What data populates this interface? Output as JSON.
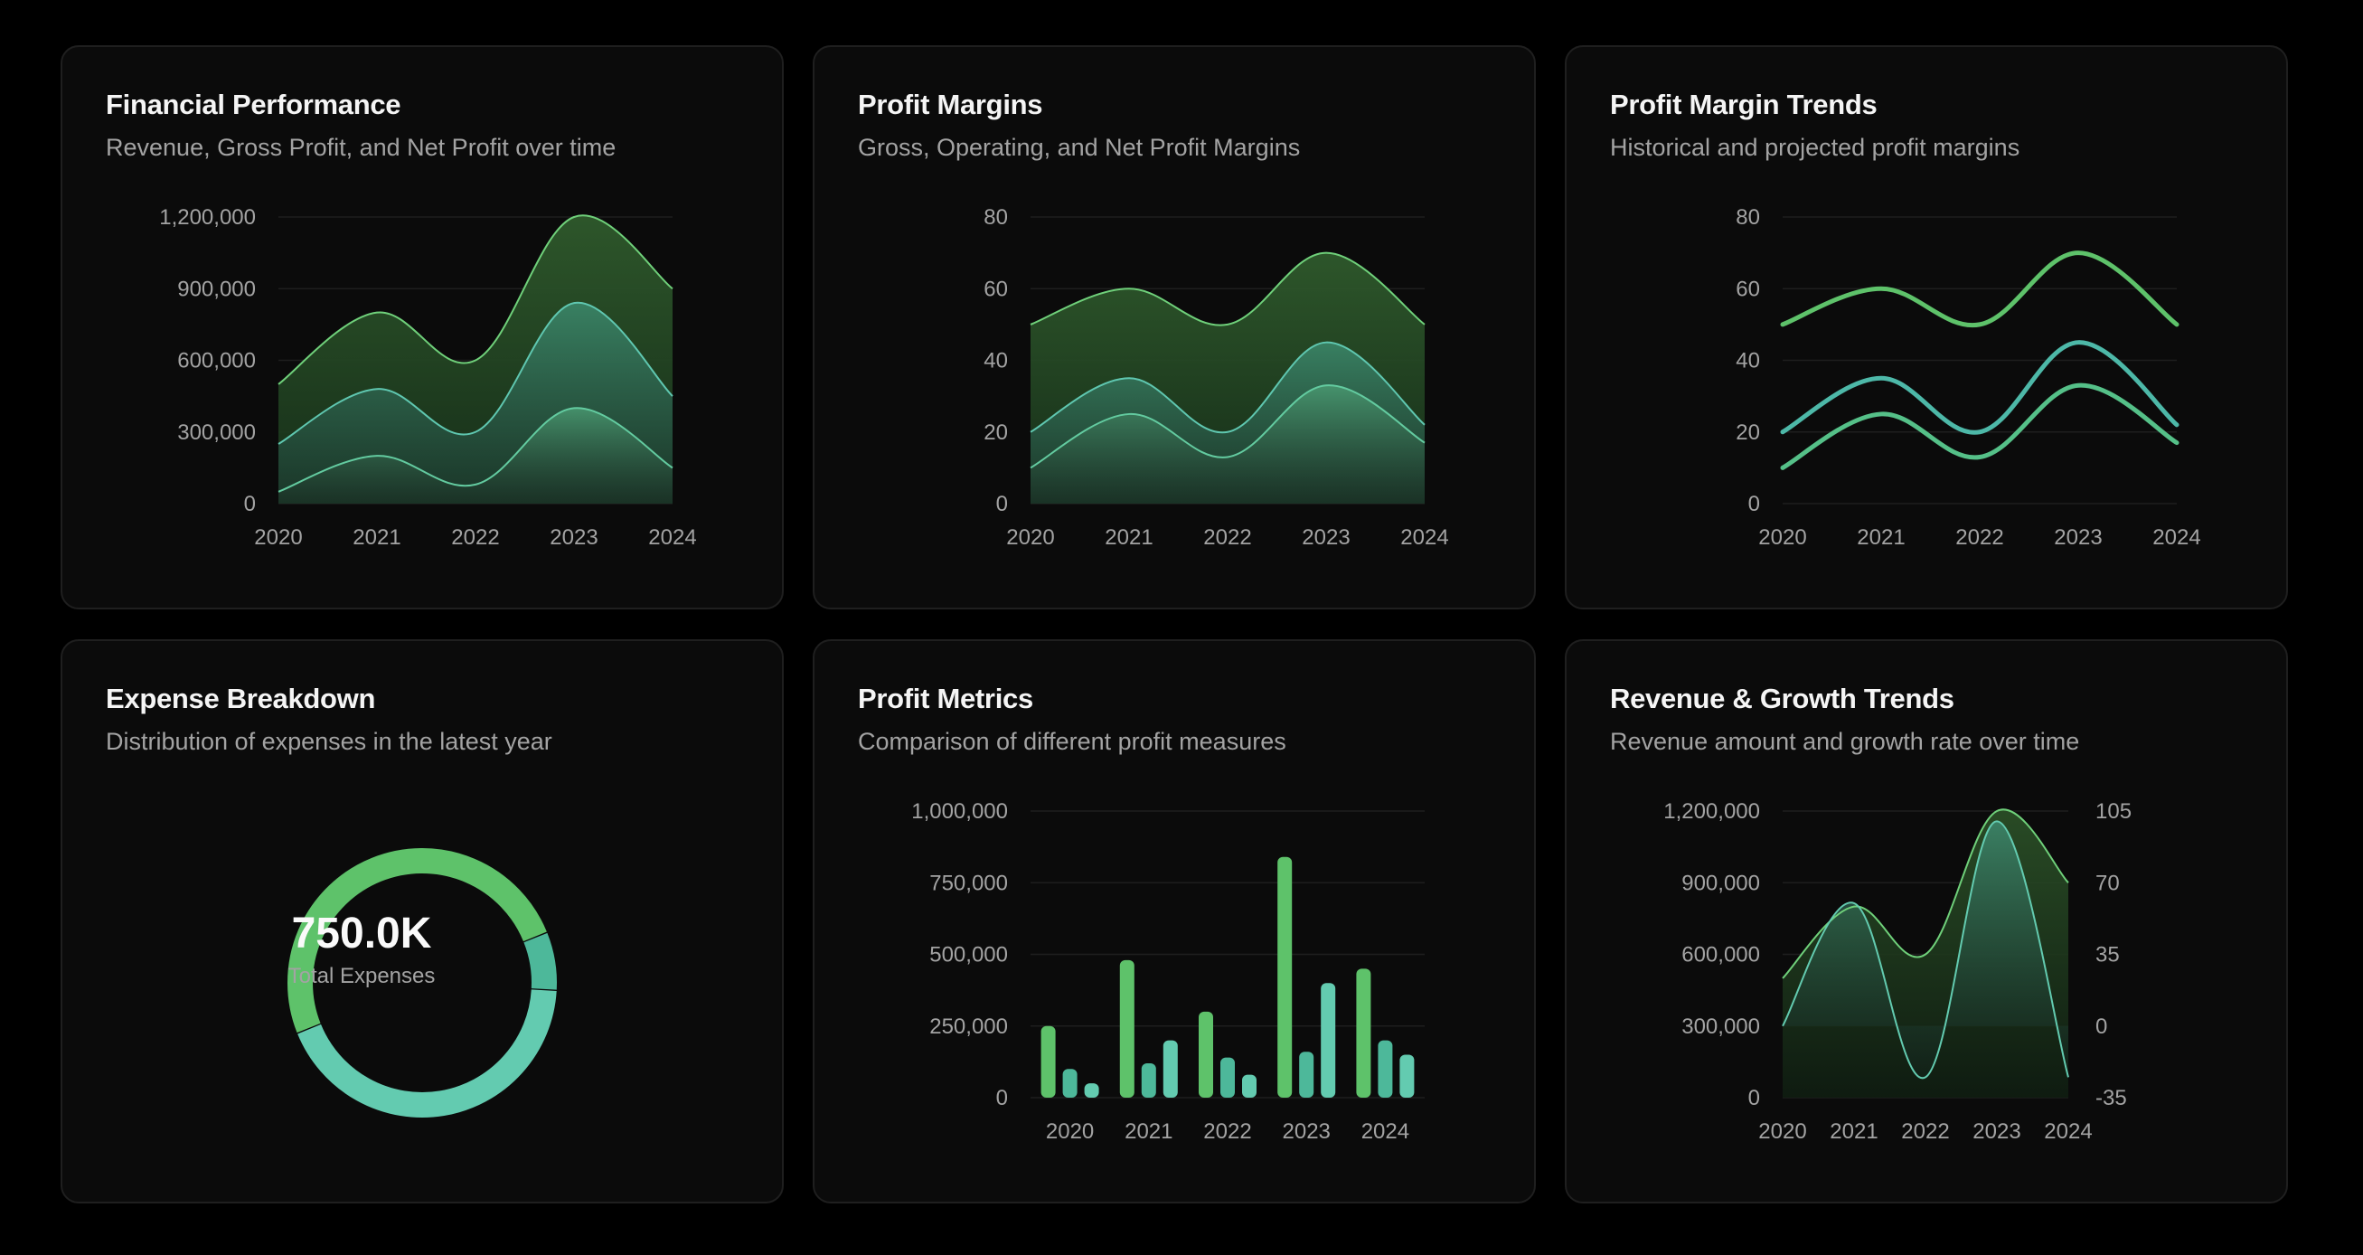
{
  "cards": [
    {
      "title": "Financial Performance",
      "subtitle": "Revenue, Gross Profit, and Net Profit over time"
    },
    {
      "title": "Profit Margins",
      "subtitle": "Gross, Operating, and Net Profit Margins"
    },
    {
      "title": "Profit Margin Trends",
      "subtitle": "Historical and projected profit margins"
    },
    {
      "title": "Expense Breakdown",
      "subtitle": "Distribution of expenses in the latest year"
    },
    {
      "title": "Profit Metrics",
      "subtitle": "Comparison of different profit measures"
    },
    {
      "title": "Revenue & Growth Trends",
      "subtitle": "Revenue amount and growth rate over time"
    }
  ],
  "colors": {
    "green": "#5ec26a",
    "teal": "#4db89a",
    "light_teal": "#63cbb0"
  },
  "chart_data": [
    {
      "type": "area",
      "x": [
        "2020",
        "2021",
        "2022",
        "2023",
        "2024"
      ],
      "y_ticks": [
        "0",
        "300,000",
        "600,000",
        "900,000",
        "1,200,000"
      ],
      "ylim": [
        0,
        1200000
      ],
      "series": [
        {
          "values": [
            500000,
            800000,
            600000,
            1200000,
            900000
          ]
        },
        {
          "values": [
            250000,
            480000,
            300000,
            840000,
            450000
          ]
        },
        {
          "values": [
            50000,
            200000,
            80000,
            400000,
            150000
          ]
        }
      ]
    },
    {
      "type": "area",
      "x": [
        "2020",
        "2021",
        "2022",
        "2023",
        "2024"
      ],
      "y_ticks": [
        "0",
        "20",
        "40",
        "60",
        "80"
      ],
      "ylim": [
        0,
        80
      ],
      "series": [
        {
          "values": [
            50,
            60,
            50,
            70,
            50
          ]
        },
        {
          "values": [
            20,
            35,
            20,
            45,
            22
          ]
        },
        {
          "values": [
            10,
            25,
            13,
            33,
            17
          ]
        }
      ]
    },
    {
      "type": "line",
      "x": [
        "2020",
        "2021",
        "2022",
        "2023",
        "2024"
      ],
      "y_ticks": [
        "0",
        "20",
        "40",
        "60",
        "80"
      ],
      "ylim": [
        0,
        80
      ],
      "series": [
        {
          "values": [
            50,
            60,
            50,
            70,
            50
          ]
        },
        {
          "values": [
            20,
            35,
            20,
            45,
            22
          ]
        },
        {
          "values": [
            10,
            25,
            13,
            33,
            17
          ]
        }
      ]
    },
    {
      "type": "pie",
      "center_value": "750.0K",
      "center_label": "Total Expenses",
      "slices": [
        {
          "value": 0.5
        },
        {
          "value": 0.07
        },
        {
          "value": 0.43
        }
      ]
    },
    {
      "type": "bar",
      "categories": [
        "2020",
        "2021",
        "2022",
        "2023",
        "2024"
      ],
      "y_ticks": [
        "0",
        "250,000",
        "500,000",
        "750,000",
        "1,000,000"
      ],
      "ylim": [
        0,
        1000000
      ],
      "series": [
        {
          "values": [
            250000,
            480000,
            300000,
            840000,
            450000
          ]
        },
        {
          "values": [
            100000,
            120000,
            140000,
            160000,
            200000
          ]
        },
        {
          "values": [
            50000,
            200000,
            80000,
            400000,
            150000
          ]
        }
      ]
    },
    {
      "type": "area",
      "x": [
        "2020",
        "2021",
        "2022",
        "2023",
        "2024"
      ],
      "y_ticks": [
        "0",
        "300,000",
        "600,000",
        "900,000",
        "1,200,000"
      ],
      "y2_ticks": [
        "-35",
        "0",
        "35",
        "70",
        "105"
      ],
      "ylim": [
        0,
        1200000
      ],
      "y2lim": [
        -35,
        105
      ],
      "series": [
        {
          "axis": "left",
          "values": [
            500000,
            800000,
            600000,
            1200000,
            900000
          ]
        },
        {
          "axis": "right",
          "values": [
            0,
            60,
            -25,
            100,
            -25
          ]
        }
      ]
    }
  ]
}
